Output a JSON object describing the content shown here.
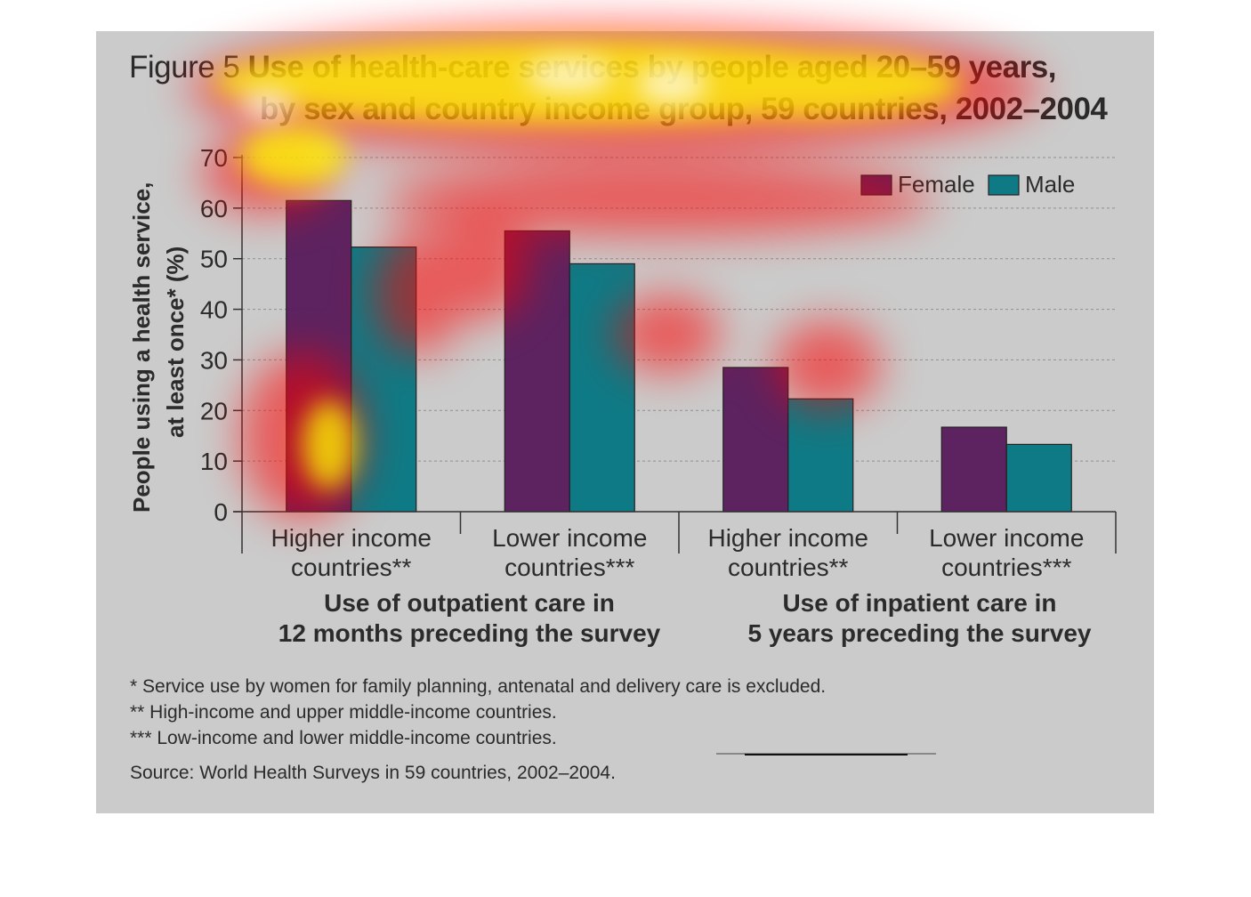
{
  "title": {
    "figure_label": "Figure 5",
    "line1": "Use of health-care services by people aged 20–59 years,",
    "line2": "by sex and country income group, 59 countries, 2002–2004"
  },
  "chart_data": {
    "type": "bar",
    "ylabel_line1": "People using a health service,",
    "ylabel_line2": "at least once* (%)",
    "ylim": [
      0,
      70
    ],
    "yticks": [
      "0",
      "10",
      "20",
      "30",
      "40",
      "50",
      "60",
      "70"
    ],
    "grid": true,
    "legend_position": "top-right",
    "categories": [
      [
        "Higher income",
        "countries**"
      ],
      [
        "Lower income",
        "countries***"
      ],
      [
        "Higher income",
        "countries**"
      ],
      [
        "Lower income",
        "countries***"
      ]
    ],
    "groups": [
      [
        "Use of outpatient care in",
        "12 months preceding the survey"
      ],
      [
        "Use of inpatient care in",
        "5 years preceding the survey"
      ]
    ],
    "series": [
      {
        "name": "Female",
        "color": "#5c2360",
        "values": [
          61.5,
          55.5,
          28.5,
          16.7
        ]
      },
      {
        "name": "Male",
        "color": "#0e7a85",
        "values": [
          52.3,
          49,
          22.3,
          13.3
        ]
      }
    ]
  },
  "notes": [
    "* Service use by women for family planning, antenatal and delivery care is excluded.",
    "** High-income and upper middle-income countries.",
    "*** Low-income and lower middle-income countries."
  ],
  "source": "Source: World Health Surveys in 59 countries, 2002–2004.",
  "overlay": {
    "heatmap_colors": [
      "#ff0000",
      "#ffff00",
      "#ffffff"
    ]
  }
}
